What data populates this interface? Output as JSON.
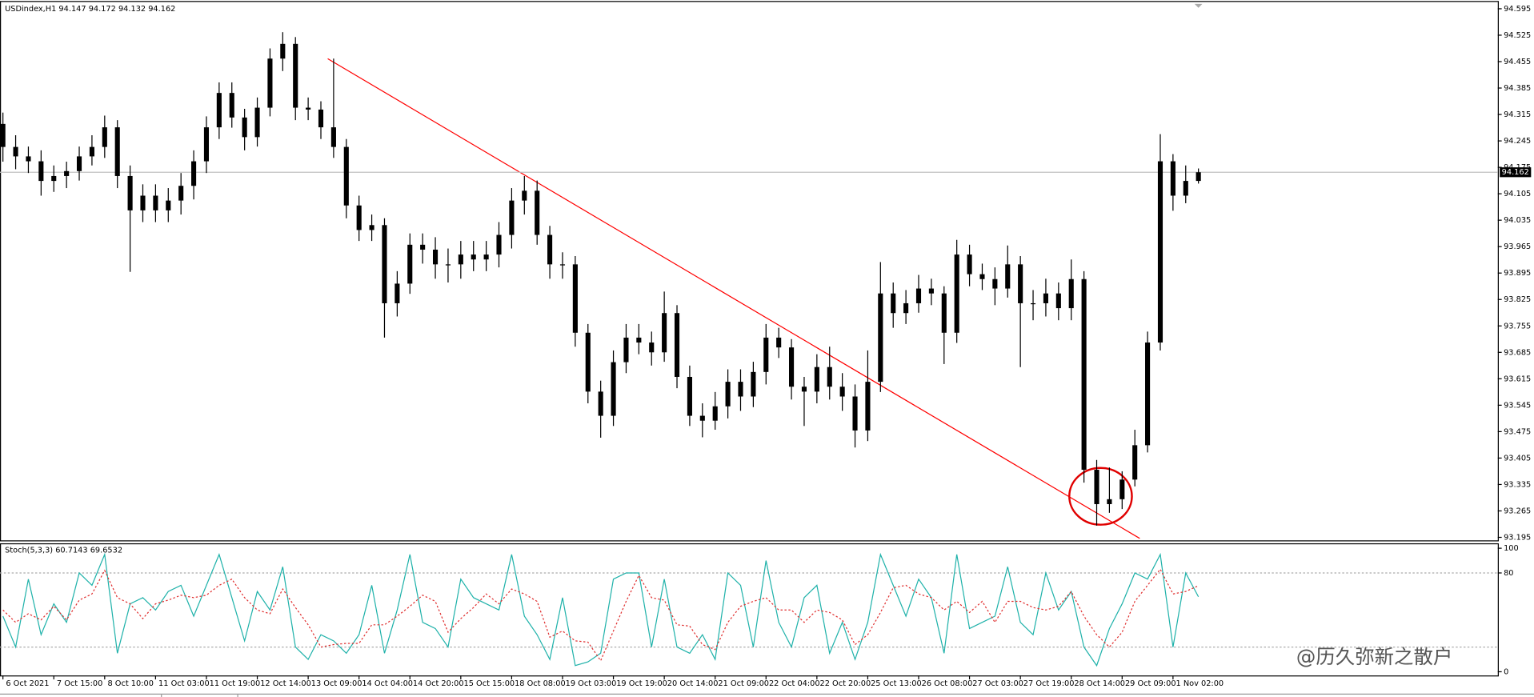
{
  "chart_data": [
    {
      "type": "candlestick",
      "title": "USDindex,H1  94.147 94.172 94.132 94.162",
      "color": "#000000",
      "categories": [
        "6 Oct 2021",
        null,
        null,
        null,
        "7 Oct 15:00",
        null,
        null,
        null,
        "8 Oct 10:00",
        null,
        null,
        null,
        "11 Oct 03:00",
        null,
        null,
        null,
        "11 Oct 19:00",
        null,
        null,
        null,
        "12 Oct 14:00",
        null,
        null,
        null,
        "13 Oct 09:00",
        null,
        null,
        null,
        "14 Oct 04:00",
        null,
        null,
        null,
        "14 Oct 20:00",
        null,
        null,
        null,
        "15 Oct 15:00",
        null,
        null,
        null,
        "18 Oct 08:00",
        null,
        null,
        null,
        "19 Oct 03:00",
        null,
        null,
        null,
        "19 Oct 19:00",
        null,
        null,
        null,
        "20 Oct 14:00",
        null,
        null,
        null,
        "21 Oct 09:00",
        null,
        null,
        null,
        "22 Oct 04:00",
        null,
        null,
        null,
        "22 Oct 20:00",
        null,
        null,
        null,
        "25 Oct 13:00",
        null,
        null,
        null,
        "26 Oct 08:00",
        null,
        null,
        null,
        "27 Oct 03:00",
        null,
        null,
        null,
        "27 Oct 19:00",
        null,
        null,
        null,
        "28 Oct 14:00",
        null,
        null,
        null,
        "29 Oct 09:00",
        null,
        null,
        null,
        "1 Nov 02:00",
        null,
        null
      ],
      "open": [
        94.29,
        94.229,
        94.204,
        94.191,
        94.139,
        94.152,
        94.165,
        94.204,
        94.229,
        94.281,
        94.152,
        94.061,
        94.1,
        94.061,
        94.087,
        94.126,
        94.191,
        94.281,
        94.372,
        94.307,
        94.255,
        94.333,
        94.463,
        94.502,
        94.333,
        94.328,
        94.281,
        94.229,
        94.074,
        94.009,
        94.022,
        93.815,
        93.867,
        93.97,
        93.957,
        93.918,
        93.918,
        93.944,
        93.931,
        93.944,
        93.996,
        94.087,
        94.113,
        93.996,
        93.918,
        93.918,
        93.737,
        93.581,
        93.517,
        93.659,
        93.724,
        93.711,
        93.685,
        93.789,
        93.62,
        93.517,
        93.504,
        93.542,
        93.607,
        93.568,
        93.633,
        93.724,
        93.698,
        93.594,
        93.581,
        93.646,
        93.594,
        93.568,
        93.478,
        93.607,
        93.841,
        93.789,
        93.815,
        93.854,
        93.841,
        93.737,
        93.944,
        93.892,
        93.879,
        93.854,
        93.918,
        93.815,
        93.815,
        93.841,
        93.802,
        93.879,
        93.374,
        93.283,
        93.296,
        93.348,
        93.439,
        93.711,
        94.191,
        94.1,
        94.139
      ],
      "high": [
        94.32,
        94.26,
        94.23,
        94.22,
        94.18,
        94.19,
        94.23,
        94.26,
        94.312,
        94.3,
        94.18,
        94.13,
        94.13,
        94.12,
        94.16,
        94.22,
        94.31,
        94.4,
        94.4,
        94.33,
        94.36,
        94.49,
        94.533,
        94.52,
        94.36,
        94.35,
        94.463,
        94.25,
        94.1,
        94.05,
        94.04,
        93.9,
        94.0,
        94.0,
        93.99,
        93.96,
        93.98,
        93.98,
        93.98,
        94.03,
        94.12,
        94.152,
        94.14,
        94.02,
        93.95,
        93.94,
        93.76,
        93.61,
        93.69,
        93.76,
        93.76,
        93.74,
        93.846,
        93.81,
        93.65,
        93.55,
        93.58,
        93.64,
        93.64,
        93.66,
        93.76,
        93.75,
        93.72,
        93.62,
        93.68,
        93.7,
        93.63,
        93.6,
        93.69,
        93.924,
        93.87,
        93.85,
        93.89,
        93.88,
        93.86,
        93.983,
        93.97,
        93.92,
        93.91,
        93.968,
        93.94,
        93.85,
        93.88,
        93.87,
        93.931,
        93.9,
        93.4,
        93.38,
        93.37,
        93.48,
        93.74,
        94.263,
        94.21,
        94.18,
        94.172
      ],
      "low": [
        94.19,
        94.17,
        94.16,
        94.1,
        94.11,
        94.12,
        94.14,
        94.18,
        94.2,
        94.12,
        93.898,
        94.03,
        94.03,
        94.03,
        94.05,
        94.09,
        94.16,
        94.25,
        94.28,
        94.22,
        94.23,
        94.31,
        94.43,
        94.3,
        94.3,
        94.25,
        94.2,
        94.04,
        93.98,
        93.98,
        93.724,
        93.78,
        93.84,
        93.92,
        93.88,
        93.87,
        93.88,
        93.9,
        93.9,
        93.91,
        93.96,
        94.05,
        93.97,
        93.88,
        93.88,
        93.7,
        93.55,
        93.459,
        93.49,
        93.63,
        93.68,
        93.65,
        93.66,
        93.59,
        93.49,
        93.46,
        93.48,
        93.51,
        93.53,
        93.54,
        93.6,
        93.67,
        93.56,
        93.49,
        93.55,
        93.56,
        93.53,
        93.433,
        93.45,
        93.58,
        93.75,
        93.76,
        93.79,
        93.81,
        93.654,
        93.71,
        93.86,
        93.85,
        93.81,
        93.83,
        93.646,
        93.77,
        93.78,
        93.77,
        93.77,
        93.34,
        93.226,
        93.26,
        93.27,
        93.33,
        93.42,
        93.69,
        94.06,
        94.08,
        94.132
      ],
      "close": [
        94.229,
        94.204,
        94.191,
        94.139,
        94.152,
        94.165,
        94.204,
        94.229,
        94.281,
        94.152,
        94.061,
        94.1,
        94.061,
        94.087,
        94.126,
        94.191,
        94.281,
        94.372,
        94.307,
        94.255,
        94.333,
        94.463,
        94.502,
        94.333,
        94.328,
        94.281,
        94.229,
        94.074,
        94.009,
        94.022,
        93.815,
        93.867,
        93.97,
        93.957,
        93.918,
        93.918,
        93.944,
        93.931,
        93.944,
        93.996,
        94.087,
        94.113,
        93.996,
        93.918,
        93.918,
        93.737,
        93.581,
        93.517,
        93.659,
        93.724,
        93.711,
        93.685,
        93.789,
        93.62,
        93.517,
        93.504,
        93.542,
        93.607,
        93.568,
        93.633,
        93.724,
        93.698,
        93.594,
        93.581,
        93.646,
        93.594,
        93.568,
        93.478,
        93.607,
        93.841,
        93.789,
        93.815,
        93.854,
        93.841,
        93.737,
        93.944,
        93.892,
        93.879,
        93.854,
        93.918,
        93.815,
        93.815,
        93.841,
        93.802,
        93.879,
        93.374,
        93.283,
        93.296,
        93.348,
        93.439,
        93.711,
        94.191,
        94.1,
        94.139,
        94.162
      ],
      "current_price": 94.162,
      "ylim": [
        93.187,
        94.613
      ],
      "yticks": [
        94.595,
        94.525,
        94.455,
        94.385,
        94.315,
        94.245,
        94.175,
        94.105,
        94.035,
        93.965,
        93.895,
        93.825,
        93.755,
        93.685,
        93.615,
        93.545,
        93.475,
        93.405,
        93.335,
        93.265,
        93.195
      ]
    },
    {
      "type": "line",
      "title": "Stoch(5,3,3) 60.7143 69.6532",
      "series": [
        {
          "color": "#20b2aa",
          "dashed": false,
          "values": [
            45,
            20,
            75,
            30,
            55,
            40,
            80,
            70,
            95,
            15,
            55,
            60,
            50,
            65,
            70,
            45,
            70,
            95,
            60,
            25,
            65,
            50,
            85,
            20,
            10,
            30,
            25,
            15,
            30,
            70,
            15,
            50,
            95,
            40,
            35,
            20,
            75,
            60,
            55,
            50,
            95,
            45,
            30,
            10,
            60,
            5,
            8,
            15,
            75,
            80,
            80,
            20,
            75,
            20,
            15,
            30,
            10,
            80,
            70,
            20,
            90,
            40,
            20,
            60,
            70,
            15,
            40,
            10,
            40,
            95,
            70,
            45,
            75,
            60,
            15,
            95,
            35,
            40,
            45,
            85,
            40,
            30,
            80,
            50,
            65,
            20,
            5,
            35,
            55,
            80,
            75,
            95,
            20,
            80,
            60.7143
          ]
        },
        {
          "color": "#e03030",
          "dashed": true,
          "values": [
            50,
            40,
            47,
            42,
            53,
            42,
            58,
            63,
            82,
            60,
            55,
            43,
            55,
            58,
            62,
            60,
            62,
            70,
            75,
            60,
            50,
            47,
            67,
            52,
            38,
            20,
            22,
            23,
            23,
            38,
            38,
            45,
            53,
            62,
            57,
            32,
            43,
            52,
            63,
            55,
            67,
            63,
            57,
            28,
            33,
            25,
            24,
            9,
            33,
            57,
            78,
            60,
            58,
            38,
            37,
            22,
            18,
            40,
            53,
            57,
            60,
            50,
            50,
            40,
            50,
            48,
            42,
            22,
            30,
            48,
            68,
            70,
            63,
            60,
            50,
            57,
            48,
            57,
            40,
            57,
            57,
            52,
            50,
            53,
            65,
            45,
            30,
            20,
            32,
            57,
            70,
            83,
            63,
            65,
            69.6532
          ]
        }
      ],
      "levels": [
        80,
        20
      ],
      "ylim": [
        -3,
        104
      ],
      "yticks": [
        100,
        80,
        0
      ]
    }
  ],
  "watermark": "@历久弥新之散户"
}
